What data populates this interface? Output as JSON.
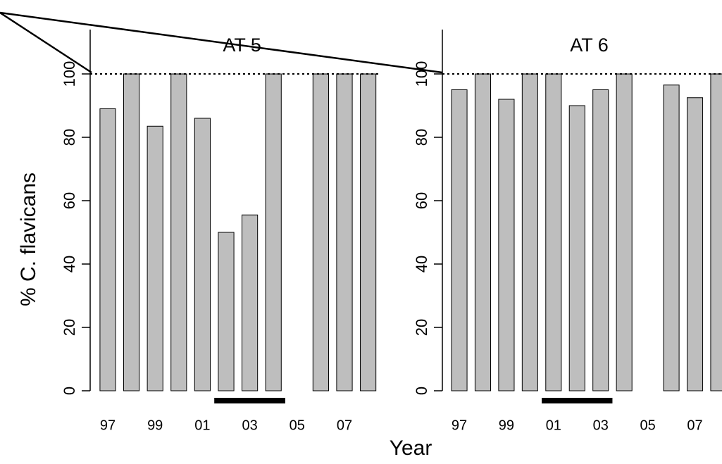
{
  "axis_labels": {
    "y": "% C. flavicans",
    "x": "Year"
  },
  "chart_data": [
    {
      "type": "bar",
      "title": "AT 5",
      "categories": [
        "97",
        null,
        "99",
        null,
        "01",
        null,
        "03",
        null,
        "05",
        null,
        "07",
        null
      ],
      "values": [
        89,
        100,
        83.5,
        100,
        86,
        50,
        55.5,
        100,
        null,
        100,
        100,
        100
      ],
      "color": "#bebebe",
      "ylim": [
        0,
        114
      ],
      "yticks": [
        0,
        20,
        40,
        60,
        80,
        100
      ],
      "reference_line": 100,
      "highlight": {
        "start": 5,
        "end": 7
      },
      "grid": false
    },
    {
      "type": "bar",
      "title": "AT 6",
      "categories": [
        "97",
        null,
        "99",
        null,
        "01",
        null,
        "03",
        null,
        "05",
        null,
        "07",
        null
      ],
      "values": [
        95,
        100,
        92,
        100,
        100,
        90,
        95,
        100,
        null,
        96.5,
        92.5,
        100
      ],
      "color": "#bebebe",
      "ylim": [
        0,
        114
      ],
      "yticks": [
        0,
        20,
        40,
        60,
        80,
        100
      ],
      "reference_line": 100,
      "highlight": {
        "start": 4,
        "end": 6
      },
      "grid": false
    }
  ]
}
